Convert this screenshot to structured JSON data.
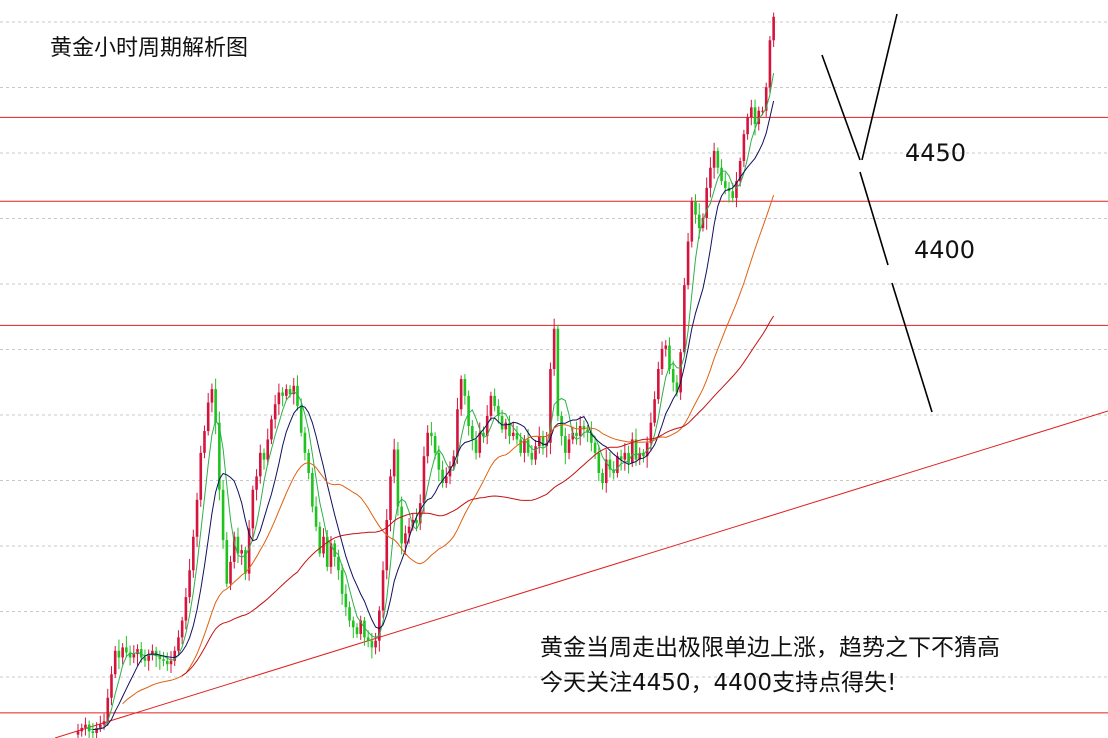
{
  "title": "黄金小时周期解析图",
  "annotation": {
    "line1": "黄金当周走出极限单边上涨，趋势之下不猜高",
    "line2": "今天关注4450，4400支持点得失!"
  },
  "chart_data": {
    "type": "candlestick",
    "title": "黄金小时周期解析图",
    "xlabel": "",
    "ylabel": "",
    "ylim": [
      4080,
      4520
    ],
    "grid": true,
    "colors": {
      "up": "#d4143c",
      "down": "#1fc21f",
      "level": "#e02020",
      "ma_fast": "#101060",
      "ma_slow1": "#e06010",
      "ma_slow2": "#c41010"
    },
    "levels": [
      {
        "label": "4450",
        "value": 4450
      },
      {
        "label": "4400",
        "value": 4400
      },
      {
        "label": "",
        "value": 4326
      },
      {
        "label": "",
        "value": 4095
      }
    ],
    "closes": [
      4084,
      4086,
      4088,
      4084,
      4083,
      4086,
      4088,
      4090,
      4104,
      4118,
      4132,
      4128,
      4134,
      4131,
      4128,
      4130,
      4133,
      4128,
      4126,
      4130,
      4132,
      4129,
      4127,
      4126,
      4124,
      4126,
      4132,
      4140,
      4150,
      4164,
      4180,
      4200,
      4222,
      4250,
      4263,
      4280,
      4288,
      4268,
      4228,
      4198,
      4172,
      4185,
      4200,
      4190,
      4192,
      4178,
      4205,
      4228,
      4236,
      4250,
      4246,
      4258,
      4270,
      4279,
      4286,
      4284,
      4288,
      4285,
      4290,
      4278,
      4262,
      4250,
      4238,
      4218,
      4206,
      4190,
      4200,
      4182,
      4196,
      4188,
      4180,
      4166,
      4158,
      4150,
      4146,
      4142,
      4150,
      4140,
      4138,
      4134,
      4138,
      4156,
      4180,
      4210,
      4236,
      4252,
      4218,
      4196,
      4202,
      4206,
      4210,
      4208,
      4220,
      4248,
      4262,
      4260,
      4250,
      4240,
      4232,
      4236,
      4242,
      4248,
      4276,
      4294,
      4284,
      4266,
      4258,
      4250,
      4262,
      4260,
      4272,
      4284,
      4278,
      4272,
      4264,
      4268,
      4260,
      4262,
      4258,
      4250,
      4258,
      4250,
      4246,
      4254,
      4260,
      4254,
      4256,
      4300,
      4324,
      4272,
      4260,
      4250,
      4258,
      4262,
      4260,
      4266,
      4264,
      4262,
      4256,
      4250,
      4238,
      4232,
      4246,
      4240,
      4238,
      4248,
      4246,
      4250,
      4244,
      4258,
      4246,
      4250,
      4248,
      4256,
      4268,
      4282,
      4300,
      4312,
      4314,
      4300,
      4292,
      4286,
      4310,
      4350,
      4376,
      4400,
      4392,
      4384,
      4390,
      4408,
      4420,
      4430,
      4420,
      4412,
      4408,
      4406,
      4402,
      4412,
      4424,
      4440,
      4450,
      4456,
      4446,
      4454,
      4454,
      4468,
      4496,
      4510
    ]
  }
}
